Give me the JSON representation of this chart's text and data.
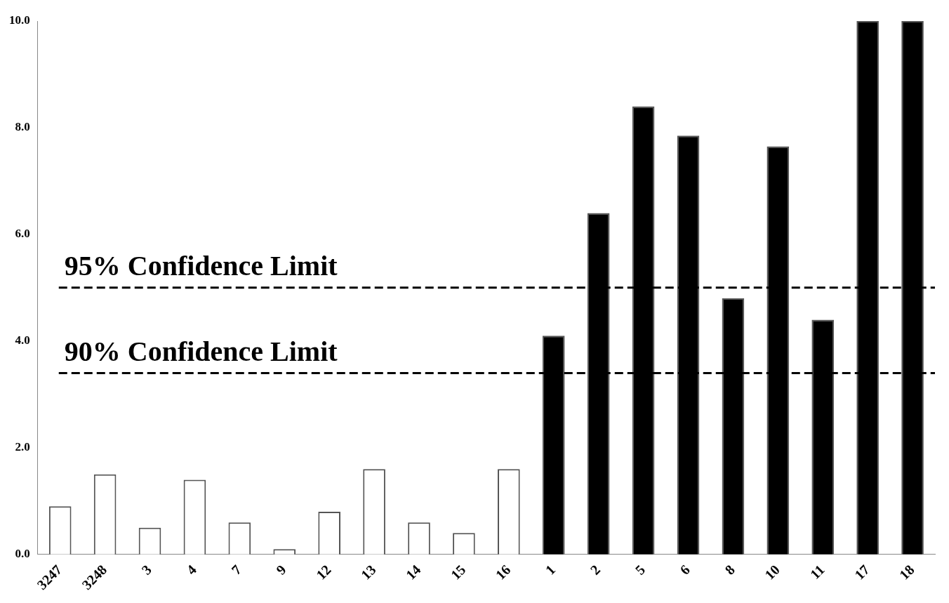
{
  "chart_data": {
    "type": "bar",
    "categories": [
      "3247",
      "3248",
      "3",
      "4",
      "7",
      "9",
      "12",
      "13",
      "14",
      "15",
      "16",
      "1",
      "2",
      "5",
      "6",
      "8",
      "10",
      "11",
      "17",
      "18"
    ],
    "values": [
      0.9,
      1.5,
      0.5,
      1.4,
      0.6,
      0.1,
      0.8,
      1.6,
      0.6,
      0.4,
      1.6,
      4.1,
      6.4,
      8.4,
      7.85,
      4.8,
      7.65,
      4.4,
      10,
      10
    ],
    "colors": [
      "#ffffff",
      "#ffffff",
      "#ffffff",
      "#ffffff",
      "#ffffff",
      "#ffffff",
      "#ffffff",
      "#ffffff",
      "#ffffff",
      "#ffffff",
      "#ffffff",
      "#000000",
      "#000000",
      "#000000",
      "#000000",
      "#000000",
      "#000000",
      "#000000",
      "#000000",
      "#000000"
    ],
    "ylim": [
      0,
      10
    ],
    "yticks": [
      {
        "value": 0,
        "label": "0.0"
      },
      {
        "value": 2,
        "label": "2.0"
      },
      {
        "value": 4,
        "label": "4.0"
      },
      {
        "value": 6,
        "label": "6.0"
      },
      {
        "value": 8,
        "label": "8.0"
      },
      {
        "value": 10,
        "label": "10.0"
      }
    ],
    "grid": false,
    "legend": false,
    "ref_lines": [
      {
        "axis": "y",
        "value": 5.0,
        "label": "95% Confidence Limit",
        "color": "#000000",
        "line_style": "dashed"
      },
      {
        "axis": "y",
        "value": 3.4,
        "label": "90% Confidence Limit",
        "color": "#000000",
        "line_style": "dashed"
      }
    ]
  }
}
